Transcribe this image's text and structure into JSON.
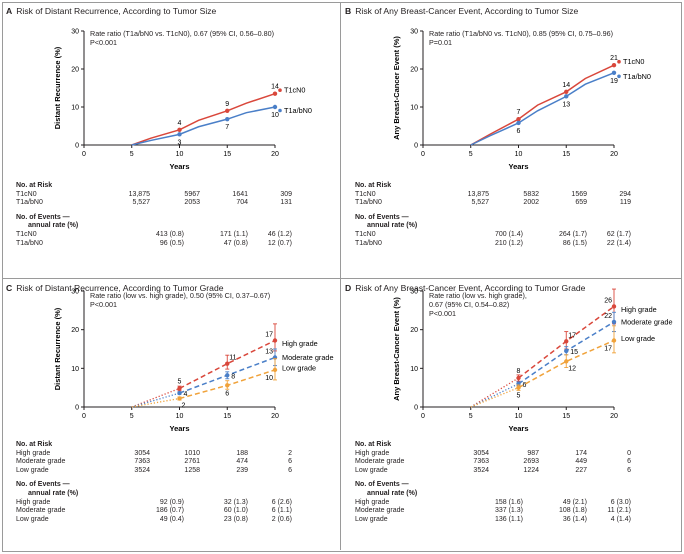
{
  "panels": [
    {
      "id": "A",
      "title": "Risk of Distant Recurrence, According to Tumor Size",
      "note": "Rate ratio (T1a/bN0 vs. T1cN0), 0.67 (95% CI, 0.56–0.80)\nP<0.001",
      "risk": {
        "header": "No. at Risk",
        "rows": [
          {
            "label": "T1cN0",
            "values": [
              "13,875",
              "5967",
              "1641",
              "309"
            ]
          },
          {
            "label": "T1a/bN0",
            "values": [
              "5,527",
              "2053",
              "704",
              "131"
            ]
          }
        ]
      },
      "events": {
        "header": "No. of Events —",
        "subheader": "annual rate (%)",
        "rows": [
          {
            "label": "T1cN0",
            "values": [
              "413 (0.8)",
              "171 (1.1)",
              "46 (1.2)"
            ]
          },
          {
            "label": "T1a/bN0",
            "values": [
              "96 (0.5)",
              "47 (0.8)",
              "12 (0.7)"
            ]
          }
        ]
      }
    },
    {
      "id": "B",
      "title": "Risk of Any Breast-Cancer Event, According to Tumor Size",
      "note": "Rate ratio (T1a/bN0 vs. T1cN0), 0.85 (95% CI, 0.75–0.96)\nP=0.01",
      "risk": {
        "header": "No. at Risk",
        "rows": [
          {
            "label": "T1cN0",
            "values": [
              "13,875",
              "5832",
              "1569",
              "294"
            ]
          },
          {
            "label": "T1a/bN0",
            "values": [
              "5,527",
              "2002",
              "659",
              "119"
            ]
          }
        ]
      },
      "events": {
        "header": "No. of Events —",
        "subheader": "annual rate (%)",
        "rows": [
          {
            "label": "T1cN0",
            "values": [
              "700 (1.4)",
              "264 (1.7)",
              "62 (1.7)"
            ]
          },
          {
            "label": "T1a/bN0",
            "values": [
              "210 (1.2)",
              "86 (1.5)",
              "22 (1.4)"
            ]
          }
        ]
      }
    },
    {
      "id": "C",
      "title": "Risk of Distant Recurrence, According to Tumor Grade",
      "note": "Rate ratio (low vs. high grade), 0.50 (95% CI, 0.37–0.67)\nP<0.001",
      "risk": {
        "header": "No. at Risk",
        "rows": [
          {
            "label": "High grade",
            "values": [
              "3054",
              "1010",
              "188",
              "2"
            ]
          },
          {
            "label": "Moderate grade",
            "values": [
              "7363",
              "2761",
              "474",
              "6"
            ]
          },
          {
            "label": "Low grade",
            "values": [
              "3524",
              "1258",
              "239",
              "6"
            ]
          }
        ]
      },
      "events": {
        "header": "No. of Events —",
        "subheader": "annual rate (%)",
        "rows": [
          {
            "label": "High grade",
            "values": [
              "92 (0.9)",
              "32 (1.3)",
              "6 (2.6)"
            ]
          },
          {
            "label": "Moderate grade",
            "values": [
              "186 (0.7)",
              "60 (1.0)",
              "6 (1.1)"
            ]
          },
          {
            "label": "Low grade",
            "values": [
              "49 (0.4)",
              "23 (0.8)",
              "2 (0.6)"
            ]
          }
        ]
      }
    },
    {
      "id": "D",
      "title": "Risk of Any Breast-Cancer Event, According to Tumor Grade",
      "note": "Rate ratio (low vs. high grade),\n0.67 (95% CI, 0.54–0.82)\nP<0.001",
      "risk": {
        "header": "No. at Risk",
        "rows": [
          {
            "label": "High grade",
            "values": [
              "3054",
              "987",
              "174",
              "0"
            ]
          },
          {
            "label": "Moderate grade",
            "values": [
              "7363",
              "2693",
              "449",
              "6"
            ]
          },
          {
            "label": "Low grade",
            "values": [
              "3524",
              "1224",
              "227",
              "6"
            ]
          }
        ]
      },
      "events": {
        "header": "No. of Events —",
        "subheader": "annual rate (%)",
        "rows": [
          {
            "label": "High grade",
            "values": [
              "158 (1.6)",
              "49 (2.1)",
              "6 (3.0)"
            ]
          },
          {
            "label": "Moderate grade",
            "values": [
              "337 (1.3)",
              "108 (1.8)",
              "11 (2.1)"
            ]
          },
          {
            "label": "Low grade",
            "values": [
              "136 (1.1)",
              "36 (1.4)",
              "4 (1.4)"
            ]
          }
        ]
      }
    }
  ],
  "colors": {
    "red": "#d9473b",
    "blue": "#4a7fc8",
    "orange": "#f0a23a",
    "axis": "#231f20"
  },
  "chart_data": [
    {
      "panel": "A",
      "type": "line",
      "xlabel": "Years",
      "ylabel": "Distant Recurrence (%)",
      "xticks": [
        0,
        5,
        10,
        15,
        20
      ],
      "yticks": [
        0,
        10,
        20,
        30
      ],
      "xlim": [
        0,
        20
      ],
      "ylim": [
        0,
        30
      ],
      "series": [
        {
          "name": "T1cN0",
          "color": "red",
          "x": [
            5,
            7,
            10,
            12,
            15,
            17,
            20
          ],
          "y": [
            0,
            1.8,
            4,
            6.5,
            9,
            11,
            13.5
          ],
          "labels": [
            {
              "x": 10,
              "y": 4,
              "text": "4",
              "pos": "above"
            },
            {
              "x": 15,
              "y": 9,
              "text": "9",
              "pos": "above"
            },
            {
              "x": 20,
              "y": 13.5,
              "text": "14",
              "pos": "above"
            }
          ]
        },
        {
          "name": "T1a/bN0",
          "color": "blue",
          "x": [
            5,
            7,
            10,
            12,
            15,
            17,
            20
          ],
          "y": [
            0,
            1.2,
            2.8,
            4.8,
            6.8,
            8.5,
            10
          ],
          "labels": [
            {
              "x": 10,
              "y": 2.8,
              "text": "3",
              "pos": "below"
            },
            {
              "x": 15,
              "y": 6.8,
              "text": "7",
              "pos": "below"
            },
            {
              "x": 20,
              "y": 10,
              "text": "10",
              "pos": "below"
            }
          ]
        }
      ],
      "points": [
        10,
        15,
        20
      ]
    },
    {
      "panel": "B",
      "type": "line",
      "xlabel": "Years",
      "ylabel": "Any Breast-Cancer Event (%)",
      "xticks": [
        0,
        5,
        10,
        15,
        20
      ],
      "yticks": [
        0,
        10,
        20,
        30
      ],
      "xlim": [
        0,
        20
      ],
      "ylim": [
        0,
        30
      ],
      "series": [
        {
          "name": "T1cN0",
          "color": "red",
          "x": [
            5,
            7,
            10,
            12,
            15,
            17,
            20
          ],
          "y": [
            0,
            2.8,
            6.8,
            10.5,
            14,
            17.5,
            21
          ],
          "labels": [
            {
              "x": 10,
              "y": 6.8,
              "text": "7",
              "pos": "above"
            },
            {
              "x": 15,
              "y": 14,
              "text": "14",
              "pos": "above"
            },
            {
              "x": 20,
              "y": 21,
              "text": "21",
              "pos": "above"
            }
          ]
        },
        {
          "name": "T1a/bN0",
          "color": "blue",
          "x": [
            5,
            7,
            10,
            12,
            15,
            17,
            20
          ],
          "y": [
            0,
            2.4,
            5.8,
            9,
            12.8,
            16,
            19
          ],
          "labels": [
            {
              "x": 10,
              "y": 5.8,
              "text": "6",
              "pos": "below"
            },
            {
              "x": 15,
              "y": 12.8,
              "text": "13",
              "pos": "below"
            },
            {
              "x": 20,
              "y": 19,
              "text": "19",
              "pos": "below"
            }
          ]
        }
      ],
      "points": [
        10,
        15,
        20
      ]
    },
    {
      "panel": "C",
      "type": "line",
      "xlabel": "Years",
      "ylabel": "Distant Recurrence (%)",
      "xticks": [
        0,
        5,
        10,
        15,
        20
      ],
      "yticks": [
        0,
        10,
        20,
        30
      ],
      "xlim": [
        0,
        20
      ],
      "ylim": [
        0,
        30
      ],
      "dotted_until": 10,
      "series": [
        {
          "name": "High grade",
          "color": "red",
          "x": [
            5,
            10,
            15,
            20
          ],
          "y": [
            0,
            4.8,
            11.2,
            17.2
          ],
          "err": [
            [
              4.2,
              5.4
            ],
            [
              9.8,
              13.4
            ],
            [
              14.5,
              21.5
            ]
          ],
          "labels": [
            {
              "x": 10,
              "y": 4.8,
              "text": "5",
              "pos": "above"
            },
            {
              "x": 15,
              "y": 11.2,
              "text": "11",
              "pos": "aboveRight"
            },
            {
              "x": 20,
              "y": 17.2,
              "text": "17",
              "pos": "aboveLeft"
            }
          ]
        },
        {
          "name": "Moderate grade",
          "color": "blue",
          "x": [
            5,
            10,
            15,
            20
          ],
          "y": [
            0,
            3.6,
            8.2,
            12.8
          ],
          "err": [
            [
              3.3,
              3.9
            ],
            [
              7.3,
              9.1
            ],
            [
              10.7,
              15
            ]
          ],
          "labels": [
            {
              "x": 10,
              "y": 3.6,
              "text": "4",
              "pos": "right"
            },
            {
              "x": 15,
              "y": 8.2,
              "text": "8",
              "pos": "right"
            },
            {
              "x": 20,
              "y": 12.8,
              "text": "13",
              "pos": "aboveLeft"
            }
          ]
        },
        {
          "name": "Low grade",
          "color": "orange",
          "x": [
            5,
            10,
            15,
            20
          ],
          "y": [
            0,
            2.2,
            5.6,
            9.6
          ],
          "err": [
            [
              1.8,
              2.6
            ],
            [
              4.6,
              6.8
            ],
            [
              7,
              12.5
            ]
          ],
          "labels": [
            {
              "x": 10,
              "y": 2.2,
              "text": "2",
              "pos": "belowRight"
            },
            {
              "x": 15,
              "y": 5.6,
              "text": "6",
              "pos": "below"
            },
            {
              "x": 20,
              "y": 9.6,
              "text": "10",
              "pos": "belowLeft"
            }
          ]
        }
      ],
      "legend": [
        "High grade",
        "Moderate grade",
        "Low grade"
      ]
    },
    {
      "panel": "D",
      "type": "line",
      "xlabel": "Years",
      "ylabel": "Any Breast-Cancer Event (%)",
      "xticks": [
        0,
        5,
        10,
        15,
        20
      ],
      "yticks": [
        0,
        10,
        20,
        30
      ],
      "xlim": [
        0,
        20
      ],
      "ylim": [
        0,
        30
      ],
      "dotted_until": 10,
      "series": [
        {
          "name": "High grade",
          "color": "red",
          "x": [
            5,
            10,
            15,
            20
          ],
          "y": [
            0,
            7.5,
            17,
            26
          ],
          "err": [
            [
              6.7,
              8.3
            ],
            [
              15,
              19.5
            ],
            [
              21.5,
              30.5
            ]
          ],
          "labels": [
            {
              "x": 10,
              "y": 7.5,
              "text": "8",
              "pos": "above"
            },
            {
              "x": 15,
              "y": 17,
              "text": "17",
              "pos": "aboveRight"
            },
            {
              "x": 20,
              "y": 26,
              "text": "26",
              "pos": "aboveLeft"
            }
          ]
        },
        {
          "name": "Moderate grade",
          "color": "blue",
          "x": [
            5,
            10,
            15,
            20
          ],
          "y": [
            0,
            6,
            14.5,
            22
          ],
          "err": [
            [
              5.5,
              6.5
            ],
            [
              13.5,
              15.6
            ],
            [
              19.5,
              24.5
            ]
          ],
          "labels": [
            {
              "x": 10,
              "y": 6,
              "text": "6",
              "pos": "right"
            },
            {
              "x": 15,
              "y": 14.5,
              "text": "15",
              "pos": "right"
            },
            {
              "x": 20,
              "y": 22,
              "text": "22",
              "pos": "aboveLeft"
            }
          ]
        },
        {
          "name": "Low grade",
          "color": "orange",
          "x": [
            5,
            10,
            15,
            20
          ],
          "y": [
            0,
            5,
            11.8,
            17.2
          ],
          "err": [
            [
              4.3,
              5.7
            ],
            [
              10.2,
              13.5
            ],
            [
              14,
              21
            ]
          ],
          "labels": [
            {
              "x": 10,
              "y": 5,
              "text": "5",
              "pos": "below"
            },
            {
              "x": 15,
              "y": 11.8,
              "text": "12",
              "pos": "belowRight"
            },
            {
              "x": 20,
              "y": 17.2,
              "text": "17",
              "pos": "belowLeft"
            }
          ]
        }
      ],
      "legend": [
        "High grade",
        "Moderate grade",
        "Low grade"
      ]
    }
  ]
}
